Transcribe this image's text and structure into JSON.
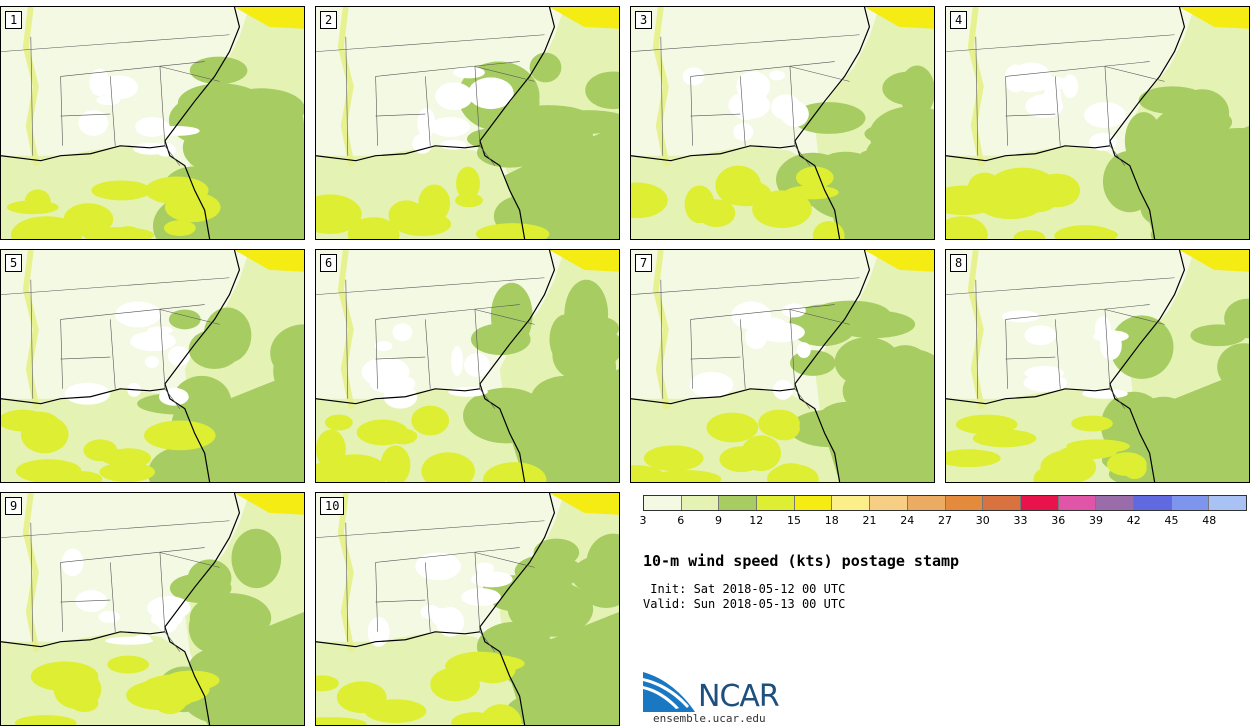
{
  "panels": [
    {
      "label": "1"
    },
    {
      "label": "2"
    },
    {
      "label": "3"
    },
    {
      "label": "4"
    },
    {
      "label": "5"
    },
    {
      "label": "6"
    },
    {
      "label": "7"
    },
    {
      "label": "8"
    },
    {
      "label": "9"
    },
    {
      "label": "10"
    }
  ],
  "colorbar": {
    "colors": [
      "#f4f9e4",
      "#e4f2b4",
      "#a6cc62",
      "#ddee33",
      "#f5ec14",
      "#fcee88",
      "#f7cf84",
      "#ecab62",
      "#e48a3c",
      "#d8733f",
      "#e8134a",
      "#e055a8",
      "#9a6caa",
      "#5f6ae0",
      "#7d95ec",
      "#a9c2f4"
    ],
    "ticks": [
      "3",
      "6",
      "9",
      "12",
      "15",
      "18",
      "21",
      "24",
      "27",
      "30",
      "33",
      "36",
      "39",
      "42",
      "45",
      "48"
    ]
  },
  "title": "10-m wind speed (kts) postage stamp",
  "init": " Init: Sat 2018-05-12 00 UTC",
  "valid": "Valid: Sun 2018-05-13 00 UTC",
  "logo_text": "NCAR",
  "site": "ensemble.ucar.edu"
}
